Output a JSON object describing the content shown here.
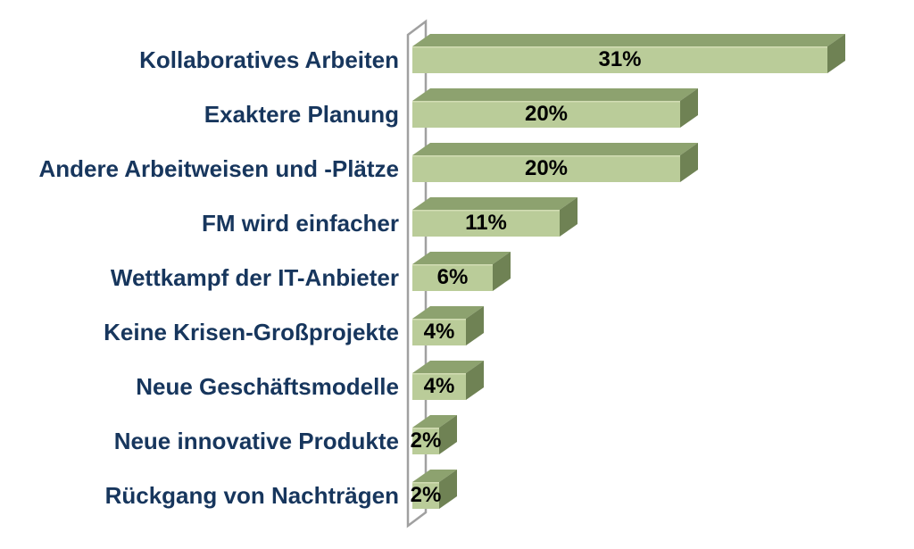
{
  "chart_data": {
    "type": "bar",
    "orientation": "horizontal",
    "style": "3d",
    "title": "",
    "xlabel": "",
    "ylabel": "",
    "grid": false,
    "legend_position": "none",
    "value_axis_visible": false,
    "value_range": [
      0,
      31
    ],
    "categories": [
      "Kollaboratives Arbeiten",
      "Exaktere Planung",
      "Andere Arbeitweisen und -Plätze",
      "FM wird einfacher",
      "Wettkampf der IT-Anbieter",
      "Keine Krisen-Großprojekte",
      "Neue Geschäftsmodelle",
      "Neue innovative Produkte",
      "Rückgang von Nachträgen"
    ],
    "values": [
      31,
      20,
      20,
      11,
      6,
      4,
      4,
      2,
      2
    ],
    "value_labels": [
      "31%",
      "20%",
      "20%",
      "11%",
      "6%",
      "4%",
      "4%",
      "2%",
      "2%"
    ],
    "colors": {
      "bar_front": "#bacc99",
      "bar_top": "#8da26f",
      "bar_side": "#6f8254",
      "bar_edge_highlight": "#d2ddb4",
      "category_label": "#17365d",
      "value_label": "#000000",
      "wall_line": "#a0a0a0",
      "background": "#ffffff"
    }
  }
}
